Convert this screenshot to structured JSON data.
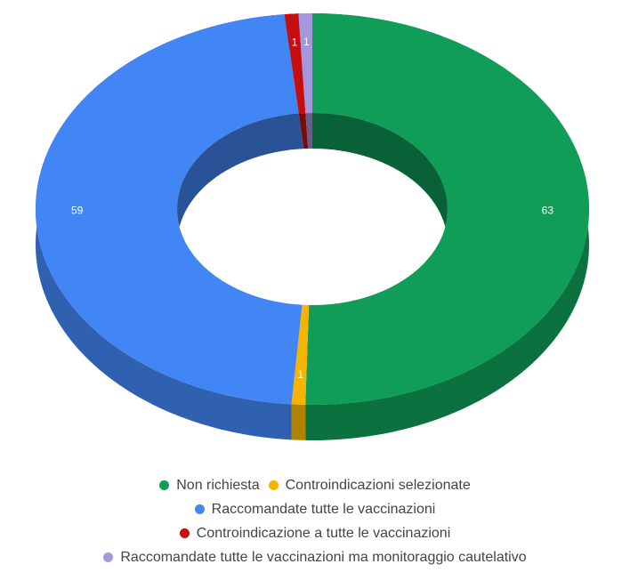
{
  "chart_data": {
    "type": "donut3d",
    "categories": [
      "Non richiesta",
      "Controindicazioni selezionate",
      "Raccomandate tutte le vaccinazioni",
      "Controindicazione a tutte le vaccinazioni",
      "Raccomandate tutte le vaccinazioni ma monitoraggio cautelativo"
    ],
    "values": [
      63,
      1,
      59,
      1,
      1
    ],
    "colors": [
      "#0f9d58",
      "#f4b400",
      "#4285f4",
      "#c50f0f",
      "#a497dd"
    ]
  }
}
